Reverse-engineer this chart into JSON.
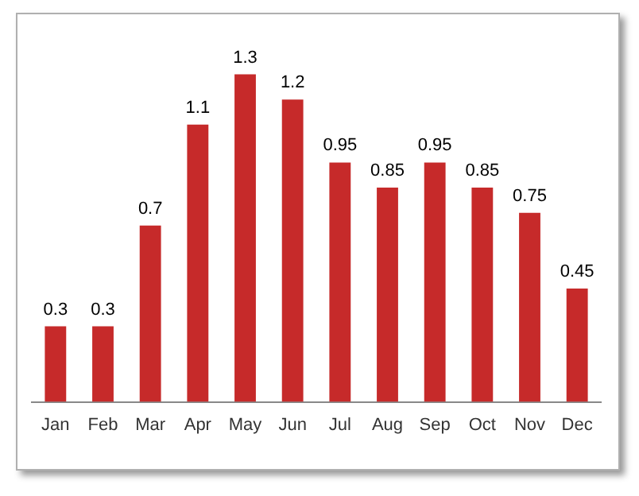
{
  "chart_data": {
    "type": "bar",
    "categories": [
      "Jan",
      "Feb",
      "Mar",
      "Apr",
      "May",
      "Jun",
      "Jul",
      "Aug",
      "Sep",
      "Oct",
      "Nov",
      "Dec"
    ],
    "values": [
      0.3,
      0.3,
      0.7,
      1.1,
      1.3,
      1.2,
      0.95,
      0.85,
      0.95,
      0.85,
      0.75,
      0.45
    ],
    "color": "#c62a2a",
    "data_labels": true,
    "grid": false,
    "legend": false
  }
}
